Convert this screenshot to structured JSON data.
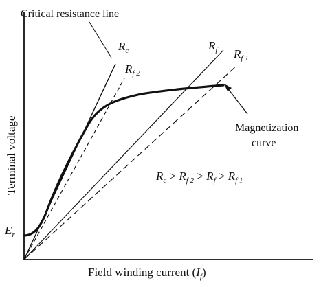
{
  "labels": {
    "critical_line": "Critical resistance line",
    "rc_main": "R",
    "rc_sub": "c",
    "rf2_main": "R",
    "rf2_sub": "f 2",
    "rf_main": "R",
    "rf_sub": "f",
    "rf1_main": "R",
    "rf1_sub": "f 1",
    "magnetization_line1": "Magnetization",
    "magnetization_line2": "curve",
    "er_main": "E",
    "er_sub": "r",
    "relation": {
      "r1": "R",
      "s1": "c",
      "g1": " > ",
      "r2": "R",
      "s2": "f 2",
      "g2": " > ",
      "r3": "R",
      "s3": "f",
      "g3": " > ",
      "r4": "R",
      "s4": "f 1"
    },
    "y_axis": "Terminal voltage",
    "x_axis_prefix": "Field winding current (",
    "x_axis_var": "I",
    "x_axis_sub": "f",
    "x_axis_suffix": ")"
  },
  "colors": {
    "ink": "#111111",
    "background": "#ffffff"
  }
}
